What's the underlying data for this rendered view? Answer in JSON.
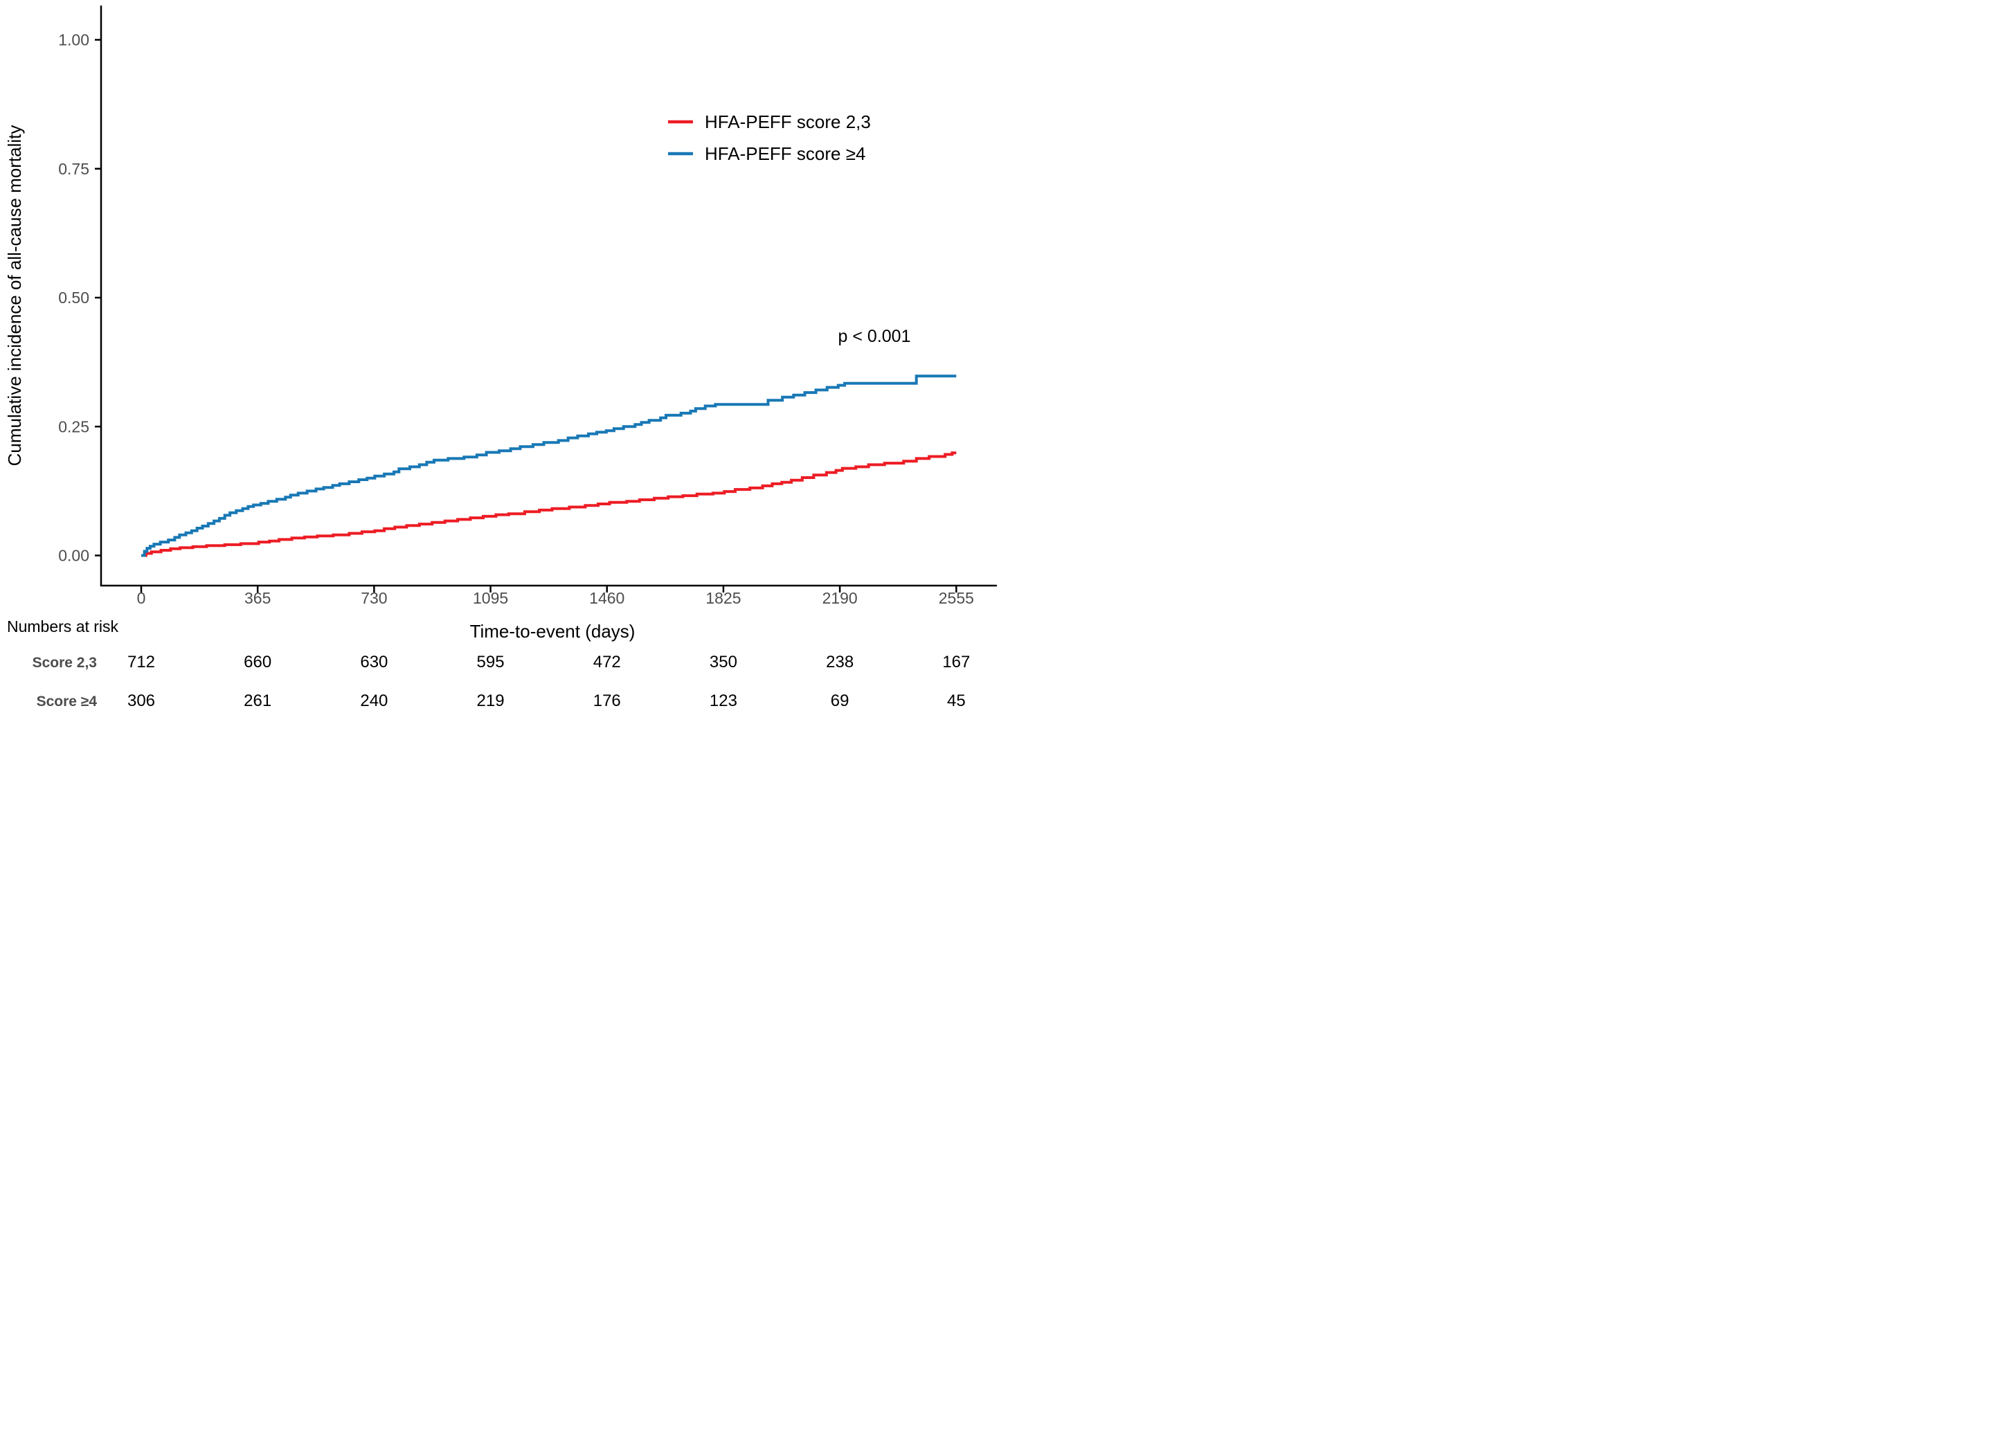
{
  "figure": {
    "y_axis": {
      "title": "Cumulative incidence of all-cause mortality",
      "tick_labels": [
        "1.00",
        "0.75",
        "0.50",
        "0.25",
        "0.00"
      ],
      "tick_values": [
        1.0,
        0.75,
        0.5,
        0.25,
        0.0
      ]
    },
    "x_axis": {
      "title": "Time-to-event (days)",
      "tick_labels": [
        "0",
        "365",
        "730",
        "1095",
        "1460",
        "1825",
        "2190",
        "2555"
      ],
      "tick_values": [
        0,
        365,
        730,
        1095,
        1460,
        1825,
        2190,
        2555
      ]
    },
    "annotation": {
      "p_value": "p < 0.001"
    },
    "legend": [
      {
        "label": "HFA-PEFF score 2,3",
        "color": "#ED1C24"
      },
      {
        "label": "HFA-PEFF score ≥4",
        "color": "#1878B5"
      }
    ]
  },
  "risk_table": {
    "title": "Numbers at risk",
    "rows": [
      {
        "label": "Score 2,3",
        "values": [
          "712",
          "660",
          "630",
          "595",
          "472",
          "350",
          "238",
          "167"
        ]
      },
      {
        "label": "Score ≥4",
        "values": [
          "306",
          "261",
          "240",
          "219",
          "176",
          "123",
          "69",
          "45"
        ]
      }
    ]
  },
  "chart_data": {
    "type": "line",
    "subtype": "step-cumulative-incidence",
    "title": "",
    "xlabel": "Time-to-event (days)",
    "ylabel": "Cumulative incidence of all-cause mortality",
    "xlim": [
      0,
      2555
    ],
    "ylim": [
      0,
      1.0
    ],
    "x_ticks": [
      0,
      365,
      730,
      1095,
      1460,
      1825,
      2190,
      2555
    ],
    "y_ticks": [
      0,
      0.25,
      0.5,
      0.75,
      1.0
    ],
    "grid": false,
    "legend_position": "inside-upper-right",
    "annotation": "p < 0.001",
    "series": [
      {
        "name": "HFA-PEFF score 2,3",
        "color": "#ED1C24",
        "points": [
          [
            0,
            0
          ],
          [
            15,
            0.004
          ],
          [
            32,
            0.007
          ],
          [
            62,
            0.01
          ],
          [
            92,
            0.013
          ],
          [
            122,
            0.015
          ],
          [
            162,
            0.017
          ],
          [
            205,
            0.019
          ],
          [
            262,
            0.021
          ],
          [
            312,
            0.023
          ],
          [
            368,
            0.026
          ],
          [
            402,
            0.028
          ],
          [
            432,
            0.031
          ],
          [
            472,
            0.034
          ],
          [
            512,
            0.036
          ],
          [
            552,
            0.038
          ],
          [
            602,
            0.04
          ],
          [
            652,
            0.043
          ],
          [
            692,
            0.046
          ],
          [
            732,
            0.048
          ],
          [
            762,
            0.052
          ],
          [
            795,
            0.055
          ],
          [
            832,
            0.058
          ],
          [
            872,
            0.061
          ],
          [
            912,
            0.064
          ],
          [
            952,
            0.067
          ],
          [
            992,
            0.07
          ],
          [
            1032,
            0.073
          ],
          [
            1072,
            0.076
          ],
          [
            1112,
            0.079
          ],
          [
            1152,
            0.081
          ],
          [
            1202,
            0.085
          ],
          [
            1248,
            0.088
          ],
          [
            1288,
            0.091
          ],
          [
            1342,
            0.094
          ],
          [
            1392,
            0.097
          ],
          [
            1432,
            0.1
          ],
          [
            1468,
            0.103
          ],
          [
            1522,
            0.105
          ],
          [
            1562,
            0.108
          ],
          [
            1608,
            0.111
          ],
          [
            1652,
            0.114
          ],
          [
            1698,
            0.116
          ],
          [
            1742,
            0.119
          ],
          [
            1792,
            0.121
          ],
          [
            1828,
            0.124
          ],
          [
            1862,
            0.128
          ],
          [
            1908,
            0.131
          ],
          [
            1948,
            0.135
          ],
          [
            1978,
            0.139
          ],
          [
            2008,
            0.142
          ],
          [
            2038,
            0.146
          ],
          [
            2072,
            0.151
          ],
          [
            2108,
            0.156
          ],
          [
            2148,
            0.161
          ],
          [
            2178,
            0.165
          ],
          [
            2198,
            0.169
          ],
          [
            2240,
            0.172
          ],
          [
            2280,
            0.176
          ],
          [
            2330,
            0.179
          ],
          [
            2390,
            0.183
          ],
          [
            2430,
            0.188
          ],
          [
            2470,
            0.192
          ],
          [
            2520,
            0.196
          ],
          [
            2542,
            0.199
          ],
          [
            2555,
            0.199
          ]
        ]
      },
      {
        "name": "HFA-PEFF score ≥4",
        "color": "#1878B5",
        "points": [
          [
            0,
            0
          ],
          [
            10,
            0.008
          ],
          [
            18,
            0.014
          ],
          [
            28,
            0.018
          ],
          [
            40,
            0.022
          ],
          [
            60,
            0.026
          ],
          [
            85,
            0.03
          ],
          [
            105,
            0.035
          ],
          [
            120,
            0.04
          ],
          [
            140,
            0.044
          ],
          [
            158,
            0.048
          ],
          [
            175,
            0.053
          ],
          [
            192,
            0.057
          ],
          [
            210,
            0.062
          ],
          [
            228,
            0.067
          ],
          [
            245,
            0.072
          ],
          [
            262,
            0.078
          ],
          [
            278,
            0.083
          ],
          [
            298,
            0.087
          ],
          [
            318,
            0.091
          ],
          [
            335,
            0.095
          ],
          [
            352,
            0.098
          ],
          [
            375,
            0.101
          ],
          [
            398,
            0.105
          ],
          [
            425,
            0.109
          ],
          [
            452,
            0.113
          ],
          [
            468,
            0.117
          ],
          [
            492,
            0.121
          ],
          [
            520,
            0.125
          ],
          [
            548,
            0.129
          ],
          [
            572,
            0.132
          ],
          [
            600,
            0.136
          ],
          [
            622,
            0.139
          ],
          [
            652,
            0.143
          ],
          [
            682,
            0.147
          ],
          [
            708,
            0.15
          ],
          [
            732,
            0.154
          ],
          [
            762,
            0.158
          ],
          [
            792,
            0.162
          ],
          [
            808,
            0.168
          ],
          [
            842,
            0.172
          ],
          [
            872,
            0.176
          ],
          [
            895,
            0.181
          ],
          [
            918,
            0.185
          ],
          [
            962,
            0.188
          ],
          [
            1012,
            0.191
          ],
          [
            1052,
            0.195
          ],
          [
            1082,
            0.2
          ],
          [
            1122,
            0.203
          ],
          [
            1158,
            0.207
          ],
          [
            1188,
            0.211
          ],
          [
            1228,
            0.215
          ],
          [
            1262,
            0.219
          ],
          [
            1308,
            0.223
          ],
          [
            1338,
            0.228
          ],
          [
            1368,
            0.232
          ],
          [
            1402,
            0.236
          ],
          [
            1428,
            0.239
          ],
          [
            1458,
            0.242
          ],
          [
            1482,
            0.246
          ],
          [
            1512,
            0.25
          ],
          [
            1548,
            0.254
          ],
          [
            1568,
            0.258
          ],
          [
            1592,
            0.262
          ],
          [
            1628,
            0.267
          ],
          [
            1645,
            0.272
          ],
          [
            1692,
            0.276
          ],
          [
            1722,
            0.28
          ],
          [
            1738,
            0.285
          ],
          [
            1768,
            0.29
          ],
          [
            1800,
            0.293
          ],
          [
            1965,
            0.301
          ],
          [
            2010,
            0.307
          ],
          [
            2045,
            0.311
          ],
          [
            2080,
            0.316
          ],
          [
            2115,
            0.321
          ],
          [
            2150,
            0.326
          ],
          [
            2185,
            0.33
          ],
          [
            2205,
            0.334
          ],
          [
            2430,
            0.348
          ],
          [
            2555,
            0.348
          ]
        ]
      }
    ],
    "numbers_at_risk": {
      "title": "Numbers at risk",
      "times": [
        0,
        365,
        730,
        1095,
        1460,
        1825,
        2190,
        2555
      ],
      "rows": [
        {
          "label": "Score 2,3",
          "counts": [
            712,
            660,
            630,
            595,
            472,
            350,
            238,
            167
          ]
        },
        {
          "label": "Score ≥4",
          "counts": [
            306,
            261,
            240,
            219,
            176,
            123,
            69,
            45
          ]
        }
      ]
    }
  }
}
